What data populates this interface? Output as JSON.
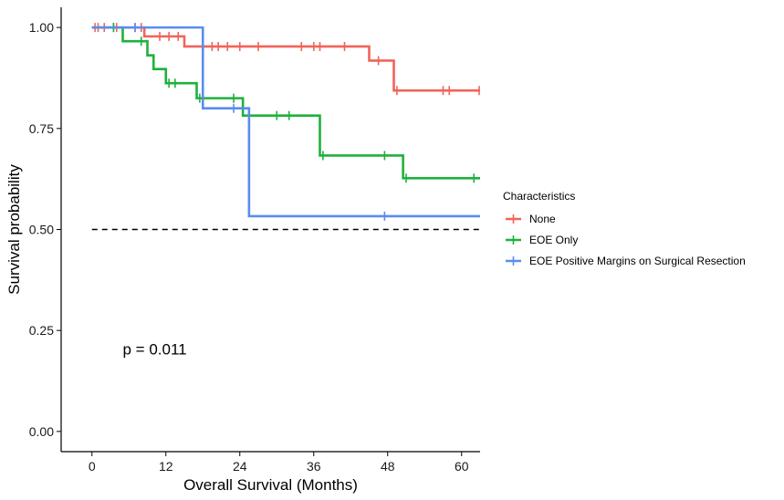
{
  "chart_data": {
    "type": "line",
    "subtype": "kaplan-meier",
    "xlabel": "Overall Survival (Months)",
    "ylabel": "Survival probability",
    "xlim": [
      -5,
      63
    ],
    "ylim": [
      -0.05,
      1.05
    ],
    "xticks": [
      0,
      12,
      24,
      36,
      48,
      60
    ],
    "yticks": [
      0,
      0.25,
      0.5,
      0.75,
      1.0
    ],
    "ytick_labels": [
      "0.00",
      "0.25",
      "0.50",
      "0.75",
      "1.00"
    ],
    "xtick_labels": [
      "0",
      "12",
      "24",
      "36",
      "48",
      "60"
    ],
    "grid": false,
    "reference_line": {
      "y": 0.5,
      "style": "dashed"
    },
    "annotation": {
      "text": "p = 0.011",
      "x": 5,
      "y": 0.19
    },
    "legend": {
      "title": "Characteristics",
      "position": "right"
    },
    "series": [
      {
        "name": "None",
        "color": "#F0645A",
        "steps": [
          [
            0,
            1.0
          ],
          [
            8.5,
            0.978
          ],
          [
            15,
            0.953
          ],
          [
            45,
            0.918
          ],
          [
            49,
            0.844
          ],
          [
            63,
            0.844
          ]
        ],
        "censors": [
          [
            0.5,
            1.0
          ],
          [
            1,
            1.0
          ],
          [
            2,
            1.0
          ],
          [
            3.5,
            1.0
          ],
          [
            4,
            1.0
          ],
          [
            7,
            1.0
          ],
          [
            8,
            1.0
          ],
          [
            11,
            0.978
          ],
          [
            12.5,
            0.978
          ],
          [
            14,
            0.978
          ],
          [
            19.5,
            0.953
          ],
          [
            20.5,
            0.953
          ],
          [
            22,
            0.953
          ],
          [
            24,
            0.953
          ],
          [
            27,
            0.953
          ],
          [
            34,
            0.953
          ],
          [
            36,
            0.953
          ],
          [
            37,
            0.953
          ],
          [
            41,
            0.953
          ],
          [
            46.5,
            0.918
          ],
          [
            49.5,
            0.844
          ],
          [
            57,
            0.844
          ],
          [
            58,
            0.844
          ],
          [
            63,
            0.844
          ]
        ]
      },
      {
        "name": "EOE Only",
        "color": "#1FB13C",
        "steps": [
          [
            0,
            1.0
          ],
          [
            5,
            0.966
          ],
          [
            9,
            0.931
          ],
          [
            10,
            0.897
          ],
          [
            12,
            0.862
          ],
          [
            17,
            0.825
          ],
          [
            24.5,
            0.782
          ],
          [
            37,
            0.683
          ],
          [
            50.5,
            0.627
          ],
          [
            63,
            0.627
          ]
        ],
        "censors": [
          [
            3.5,
            1.0
          ],
          [
            8,
            0.966
          ],
          [
            12.5,
            0.862
          ],
          [
            13.5,
            0.862
          ],
          [
            17.5,
            0.825
          ],
          [
            23,
            0.825
          ],
          [
            30,
            0.782
          ],
          [
            32,
            0.782
          ],
          [
            37.5,
            0.683
          ],
          [
            47.5,
            0.683
          ],
          [
            51,
            0.627
          ],
          [
            62,
            0.627
          ]
        ]
      },
      {
        "name": "EOE Positive Margins on Surgical Resection",
        "color": "#5A8CF0",
        "steps": [
          [
            0,
            1.0
          ],
          [
            18,
            0.8
          ],
          [
            25.5,
            0.533
          ],
          [
            63,
            0.533
          ]
        ],
        "censors": [
          [
            7,
            1.0
          ],
          [
            23,
            0.8
          ],
          [
            47.5,
            0.533
          ]
        ]
      }
    ]
  }
}
